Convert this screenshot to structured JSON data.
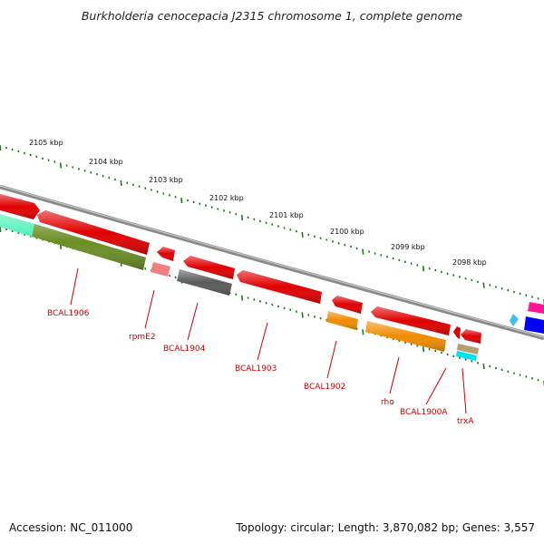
{
  "title": "Burkholderia cenocepacia J2315 chromosome 1, complete genome",
  "footer": {
    "accession": "Accession: NC_011000",
    "summary": "Topology: circular; Length: 3,870,082 bp; Genes: 3,557"
  },
  "ticks": [
    "2105 kbp",
    "2104 kbp",
    "2103 kbp",
    "2102 kbp",
    "2101 kbp",
    "2100 kbp",
    "2099 kbp",
    "2098 kbp"
  ],
  "genes": [
    "BCAL1906",
    "rpmE2",
    "BCAL1904",
    "BCAL1903",
    "BCAL1902",
    "rho",
    "BCAL1900A",
    "trxA"
  ],
  "colors": {
    "gene": "#e00000",
    "label": "#cc0000",
    "tick": "#1a7a1a",
    "backbone": "#808080",
    "olive": "#6b8e23",
    "teal": "#3cf0b0",
    "orange": "#f08c00",
    "salmon": "#f08080",
    "dark_gray": "#5a5a5a",
    "tan": "#b4a06e",
    "cyan": "#00e0f0",
    "magenta": "#ff1493",
    "blue": "#0000ff",
    "sky": "#40c0f0"
  }
}
